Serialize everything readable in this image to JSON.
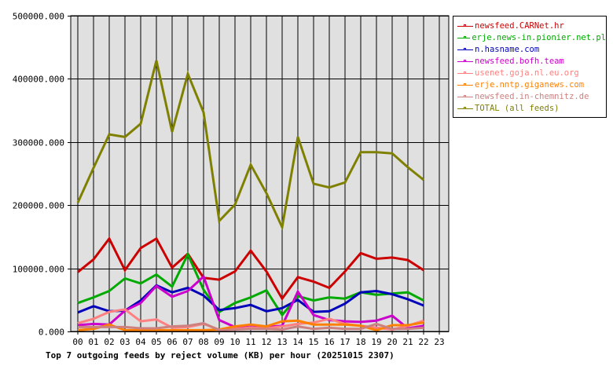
{
  "chart_data": {
    "type": "line",
    "title": "Top 7 outgoing feeds by reject volume (KB) per hour (20251015 2307)",
    "xlabel": "",
    "ylabel": "",
    "ylim": [
      0,
      500000
    ],
    "yticks": [
      "0.000",
      "100000.000",
      "200000.000",
      "300000.000",
      "400000.000",
      "500000.000"
    ],
    "x": [
      "00",
      "01",
      "02",
      "03",
      "04",
      "05",
      "06",
      "07",
      "08",
      "09",
      "10",
      "11",
      "12",
      "13",
      "14",
      "15",
      "16",
      "17",
      "18",
      "19",
      "20",
      "21",
      "22",
      "23"
    ],
    "grid": true,
    "legend_position": "right",
    "series": [
      {
        "name": "newsfeed.CARNet.hr",
        "color": "#cc0000",
        "values": [
          94000,
          114000,
          147000,
          97000,
          132000,
          147000,
          101000,
          123000,
          85000,
          82000,
          95000,
          128000,
          95000,
          52000,
          86000,
          79000,
          69000,
          95000,
          124000,
          115000,
          117000,
          113000,
          97000
        ]
      },
      {
        "name": "erje.news-in.pionier.net.pl",
        "color": "#00aa00",
        "values": [
          45000,
          54000,
          64000,
          84000,
          76000,
          90000,
          71000,
          122000,
          66000,
          31000,
          45000,
          54000,
          65000,
          26000,
          56000,
          49000,
          54000,
          52000,
          62000,
          58000,
          60000,
          62000,
          49000
        ]
      },
      {
        "name": "n.hasname.com",
        "color": "#0000bb",
        "values": [
          30000,
          40000,
          32000,
          33000,
          49000,
          73000,
          62000,
          69000,
          57000,
          34000,
          37000,
          42000,
          32000,
          37000,
          50000,
          31000,
          32000,
          44000,
          62000,
          64000,
          59000,
          51000,
          41000
        ]
      },
      {
        "name": "newsfeed.bofh.team",
        "color": "#cc00cc",
        "values": [
          10000,
          12000,
          11000,
          33000,
          45000,
          72000,
          55000,
          64000,
          87000,
          18000,
          7000,
          10000,
          7000,
          9000,
          63000,
          26000,
          18000,
          16000,
          15000,
          17000,
          25000,
          5000,
          9000
        ]
      },
      {
        "name": "usenet.goja.nl.eu.org",
        "color": "#ff8080",
        "values": [
          13000,
          20000,
          31000,
          35000,
          16000,
          19000,
          6000,
          7000,
          12000,
          3000,
          4000,
          6000,
          5000,
          8000,
          12000,
          14000,
          20000,
          12000,
          9000,
          6000,
          3000,
          9000,
          17000
        ]
      },
      {
        "name": "erje.nntp.giganews.com",
        "color": "#ff8000",
        "values": [
          2000,
          4000,
          11000,
          2000,
          2000,
          2000,
          2000,
          2000,
          2000,
          3000,
          8000,
          11000,
          8000,
          16000,
          17000,
          11000,
          11000,
          11000,
          9000,
          2000,
          10000,
          10000,
          14000
        ]
      },
      {
        "name": "newsfeed.in-chemnitz.de",
        "color": "#cc8080",
        "values": [
          7000,
          7000,
          7000,
          7000,
          5000,
          5000,
          8000,
          9000,
          13000,
          2000,
          3000,
          4000,
          4000,
          3000,
          8000,
          4000,
          6000,
          4000,
          4000,
          12000,
          4000,
          4000,
          6000
        ]
      },
      {
        "name": "TOTAL (all feeds)",
        "color": "#808000",
        "values": [
          204000,
          259000,
          312000,
          308000,
          329000,
          429000,
          316000,
          408000,
          347000,
          175000,
          201000,
          264000,
          219000,
          165000,
          308000,
          234000,
          228000,
          236000,
          284000,
          284000,
          282000,
          260000,
          240000
        ]
      }
    ]
  },
  "plot": {
    "background": "#e0e0e0",
    "grid_color": "#000000"
  }
}
